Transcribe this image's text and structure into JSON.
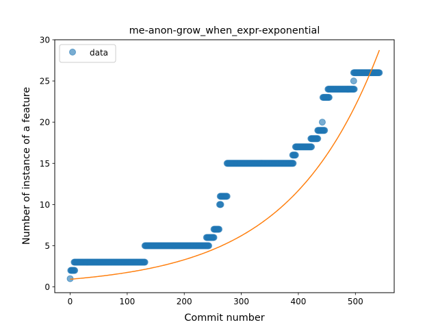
{
  "chart_data": {
    "type": "scatter",
    "title": "me-anon-grow_when_expr-exponential",
    "xlabel": "Commit number",
    "ylabel": "Number of instance of a feature",
    "xlim": [
      -27,
      568
    ],
    "ylim": [
      -0.7,
      30
    ],
    "xticks": [
      0,
      100,
      200,
      300,
      400,
      500
    ],
    "yticks": [
      0,
      5,
      10,
      15,
      20,
      25,
      30
    ],
    "legend": {
      "position": "top-left",
      "entries": [
        "data"
      ]
    },
    "colors": {
      "data": "#1f77b4",
      "fit": "#ff7f0e"
    },
    "series": [
      {
        "name": "data",
        "kind": "scatter",
        "segments": [
          {
            "x_start": 0,
            "x_end": 0,
            "y": 1
          },
          {
            "x_start": 1,
            "x_end": 8,
            "y": 2
          },
          {
            "x_start": 7,
            "x_end": 131,
            "y": 3
          },
          {
            "x_start": 131,
            "x_end": 243,
            "y": 5
          },
          {
            "x_start": 239,
            "x_end": 252,
            "y": 6
          },
          {
            "x_start": 252,
            "x_end": 261,
            "y": 7
          },
          {
            "x_start": 262,
            "x_end": 264,
            "y": 10
          },
          {
            "x_start": 263,
            "x_end": 275,
            "y": 11
          },
          {
            "x_start": 275,
            "x_end": 391,
            "y": 15
          },
          {
            "x_start": 390,
            "x_end": 395,
            "y": 16
          },
          {
            "x_start": 395,
            "x_end": 423,
            "y": 17
          },
          {
            "x_start": 422,
            "x_end": 434,
            "y": 18
          },
          {
            "x_start": 434,
            "x_end": 446,
            "y": 19
          },
          {
            "x_start": 442,
            "x_end": 442,
            "y": 20
          },
          {
            "x_start": 443,
            "x_end": 454,
            "y": 23
          },
          {
            "x_start": 452,
            "x_end": 498,
            "y": 24
          },
          {
            "x_start": 497,
            "x_end": 497,
            "y": 25
          },
          {
            "x_start": 497,
            "x_end": 542,
            "y": 26
          }
        ]
      },
      {
        "kind": "line",
        "function": "exponential",
        "a": 0.93,
        "b": 0.00633,
        "x_range": [
          0,
          542
        ]
      }
    ]
  }
}
